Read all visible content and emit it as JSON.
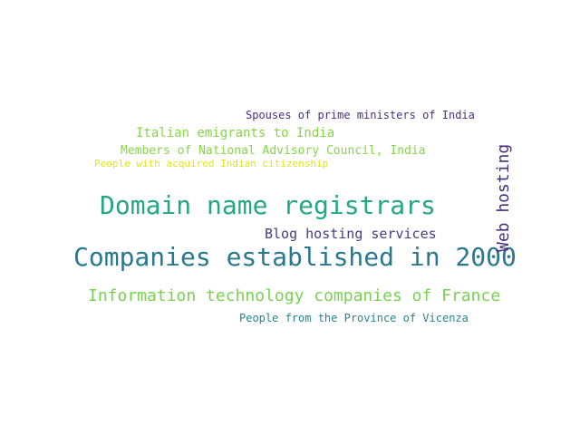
{
  "words": {
    "spouses": {
      "text": "Spouses of prime ministers of India",
      "color": "#46337e"
    },
    "italian": {
      "text": "Italian emigrants to India",
      "color": "#86d549"
    },
    "members": {
      "text": "Members of National Advisory Council, India",
      "color": "#86d549"
    },
    "people_citizenship": {
      "text": "People with acquired Indian citizenship",
      "color": "#e3e419"
    },
    "domain": {
      "text": "Domain name registrars",
      "color": "#22a884"
    },
    "blog": {
      "text": "Blog hosting services",
      "color": "#433e85"
    },
    "companies": {
      "text": "Companies established in 2000",
      "color": "#2a788e"
    },
    "web_hosting": {
      "text": "Web hosting",
      "color": "#472d7b"
    },
    "infotech": {
      "text": "Information technology companies of France",
      "color": "#7ad151"
    },
    "vicenza": {
      "text": "People from the Province of Vicenza",
      "color": "#25858e"
    }
  }
}
